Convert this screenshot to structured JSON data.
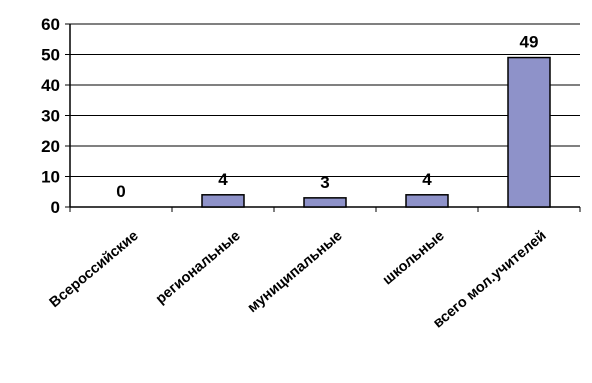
{
  "chart_data": {
    "type": "bar",
    "categories": [
      "Всероссийские",
      "региональные",
      "муниципальные",
      "школьные",
      "всего мол.учителей"
    ],
    "values": [
      0,
      4,
      3,
      4,
      49
    ],
    "data_labels": [
      "0",
      "4",
      "3",
      "4",
      "49"
    ],
    "yticks": [
      "0",
      "10",
      "20",
      "30",
      "40",
      "50",
      "60"
    ],
    "ylim": [
      0,
      60
    ],
    "grid": true,
    "bar_color": "#8e92c9",
    "bar_stroke": "#000000"
  }
}
